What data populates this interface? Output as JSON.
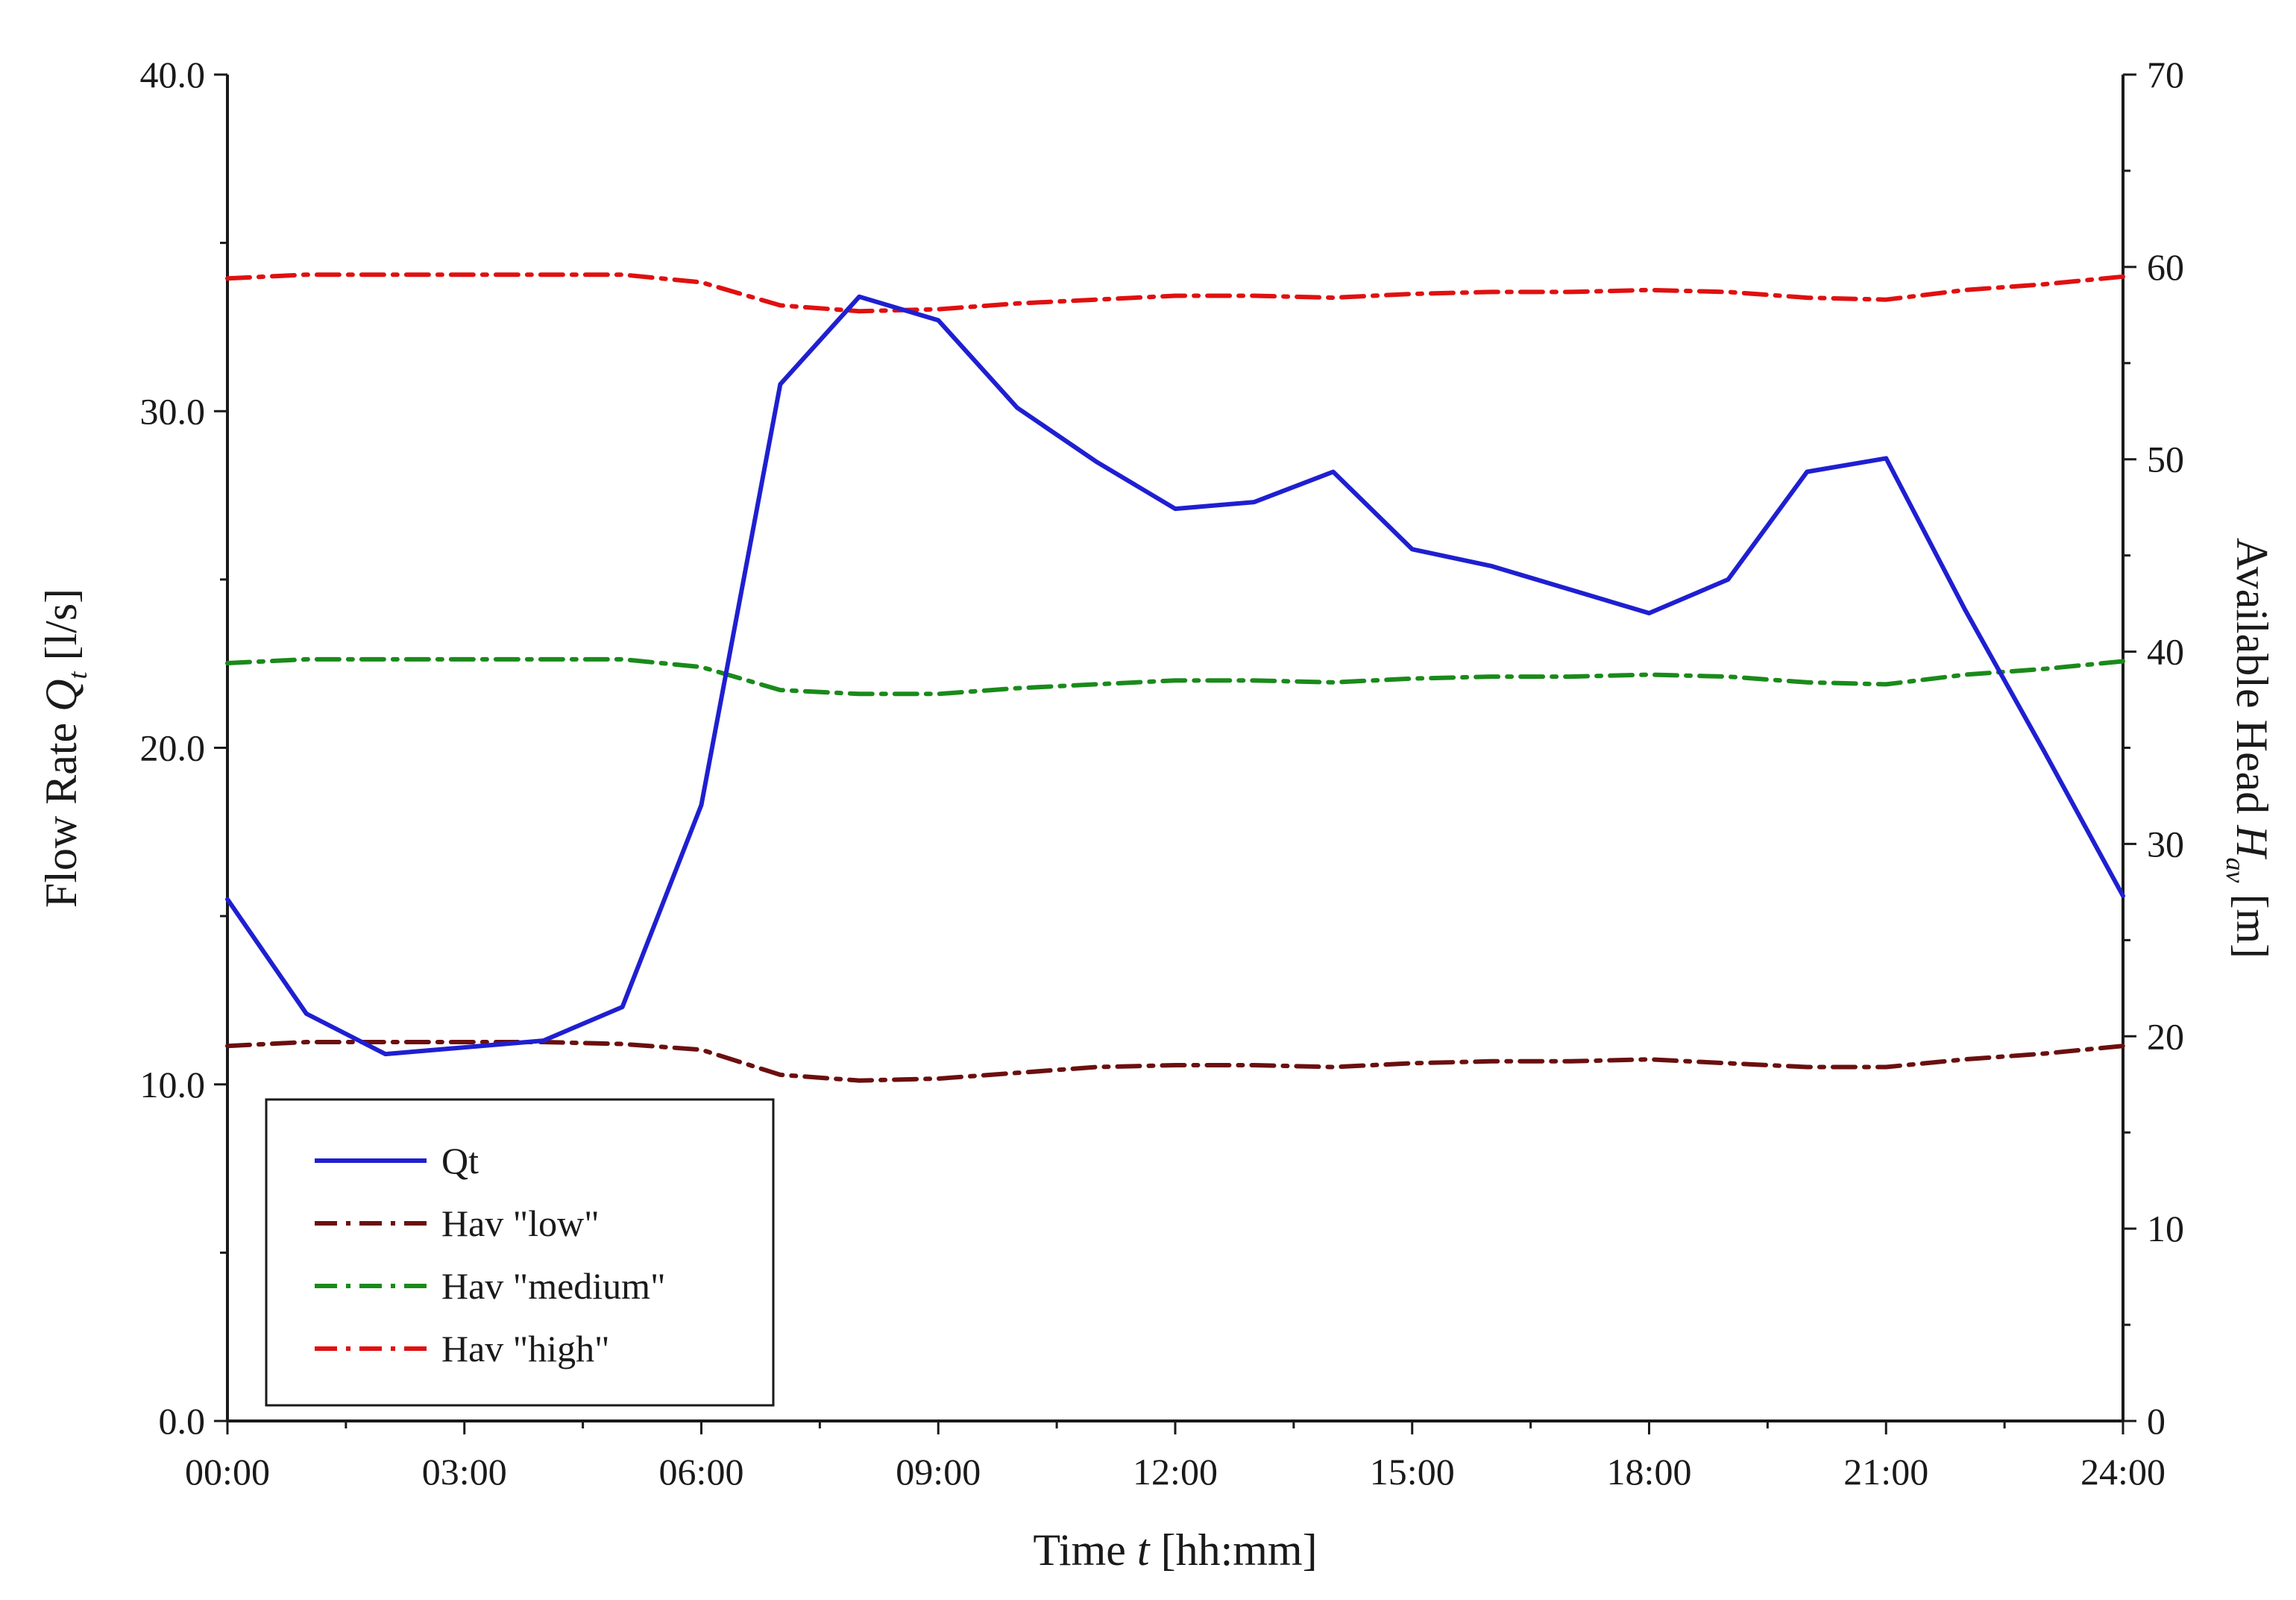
{
  "chart_data": {
    "type": "line",
    "x_label": "hh:mm",
    "x": [
      "00:00",
      "01:00",
      "02:00",
      "03:00",
      "04:00",
      "05:00",
      "06:00",
      "07:00",
      "08:00",
      "09:00",
      "10:00",
      "11:00",
      "12:00",
      "13:00",
      "14:00",
      "15:00",
      "16:00",
      "17:00",
      "18:00",
      "19:00",
      "20:00",
      "21:00",
      "22:00",
      "23:00",
      "24:00"
    ],
    "x_ticks": [
      "00:00",
      "03:00",
      "06:00",
      "09:00",
      "12:00",
      "15:00",
      "18:00",
      "21:00",
      "24:00"
    ],
    "xlim": [
      0,
      24
    ],
    "xlabel": {
      "pre": "Time ",
      "var": "t",
      "post": " [hh:mm]"
    },
    "ylabel_left": {
      "pre": "Flow Rate ",
      "var": "Q",
      "sub": "t",
      "post": " [l/s]"
    },
    "ylabel_right": {
      "pre": "Available Head ",
      "var": "H",
      "sub": "av",
      "post": " [m]"
    },
    "ylim_left": [
      0,
      40
    ],
    "ylim_right": [
      0,
      70
    ],
    "left_ticks": [
      "0.0",
      "10.0",
      "20.0",
      "30.0",
      "40.0"
    ],
    "right_ticks": [
      "0",
      "10",
      "20",
      "30",
      "40",
      "50",
      "60",
      "70"
    ],
    "series": [
      {
        "name": "Qt",
        "axis": "left",
        "color": "#1f1fd1",
        "style": "solid",
        "values": [
          15.5,
          12.1,
          10.9,
          11.1,
          11.3,
          12.3,
          18.3,
          30.8,
          33.4,
          32.7,
          30.1,
          28.5,
          27.1,
          27.3,
          28.2,
          25.9,
          25.4,
          24.7,
          24.0,
          25.0,
          28.2,
          28.6,
          24.1,
          19.9,
          15.6
        ]
      },
      {
        "name": "Hav \"low\"",
        "axis": "right",
        "color": "#6b0f0f",
        "style": "dashdot",
        "values": [
          19.5,
          19.7,
          19.7,
          19.7,
          19.7,
          19.6,
          19.3,
          18.0,
          17.7,
          17.8,
          18.1,
          18.4,
          18.5,
          18.5,
          18.4,
          18.6,
          18.7,
          18.7,
          18.8,
          18.6,
          18.4,
          18.4,
          18.8,
          19.1,
          19.5
        ]
      },
      {
        "name": "Hav \"medium\"",
        "axis": "right",
        "color": "#1a8a1a",
        "style": "dashdot",
        "values": [
          39.4,
          39.6,
          39.6,
          39.6,
          39.6,
          39.6,
          39.2,
          38.0,
          37.8,
          37.8,
          38.1,
          38.3,
          38.5,
          38.5,
          38.4,
          38.6,
          38.7,
          38.7,
          38.8,
          38.7,
          38.4,
          38.3,
          38.8,
          39.1,
          39.5
        ]
      },
      {
        "name": "Hav \"high\"",
        "axis": "right",
        "color": "#e01010",
        "style": "dashdot",
        "values": [
          59.4,
          59.6,
          59.6,
          59.6,
          59.6,
          59.6,
          59.2,
          58.0,
          57.7,
          57.8,
          58.1,
          58.3,
          58.5,
          58.5,
          58.4,
          58.6,
          58.7,
          58.7,
          58.8,
          58.7,
          58.4,
          58.3,
          58.8,
          59.1,
          59.5
        ]
      }
    ],
    "legend_position": "lower-left",
    "grid": false
  }
}
